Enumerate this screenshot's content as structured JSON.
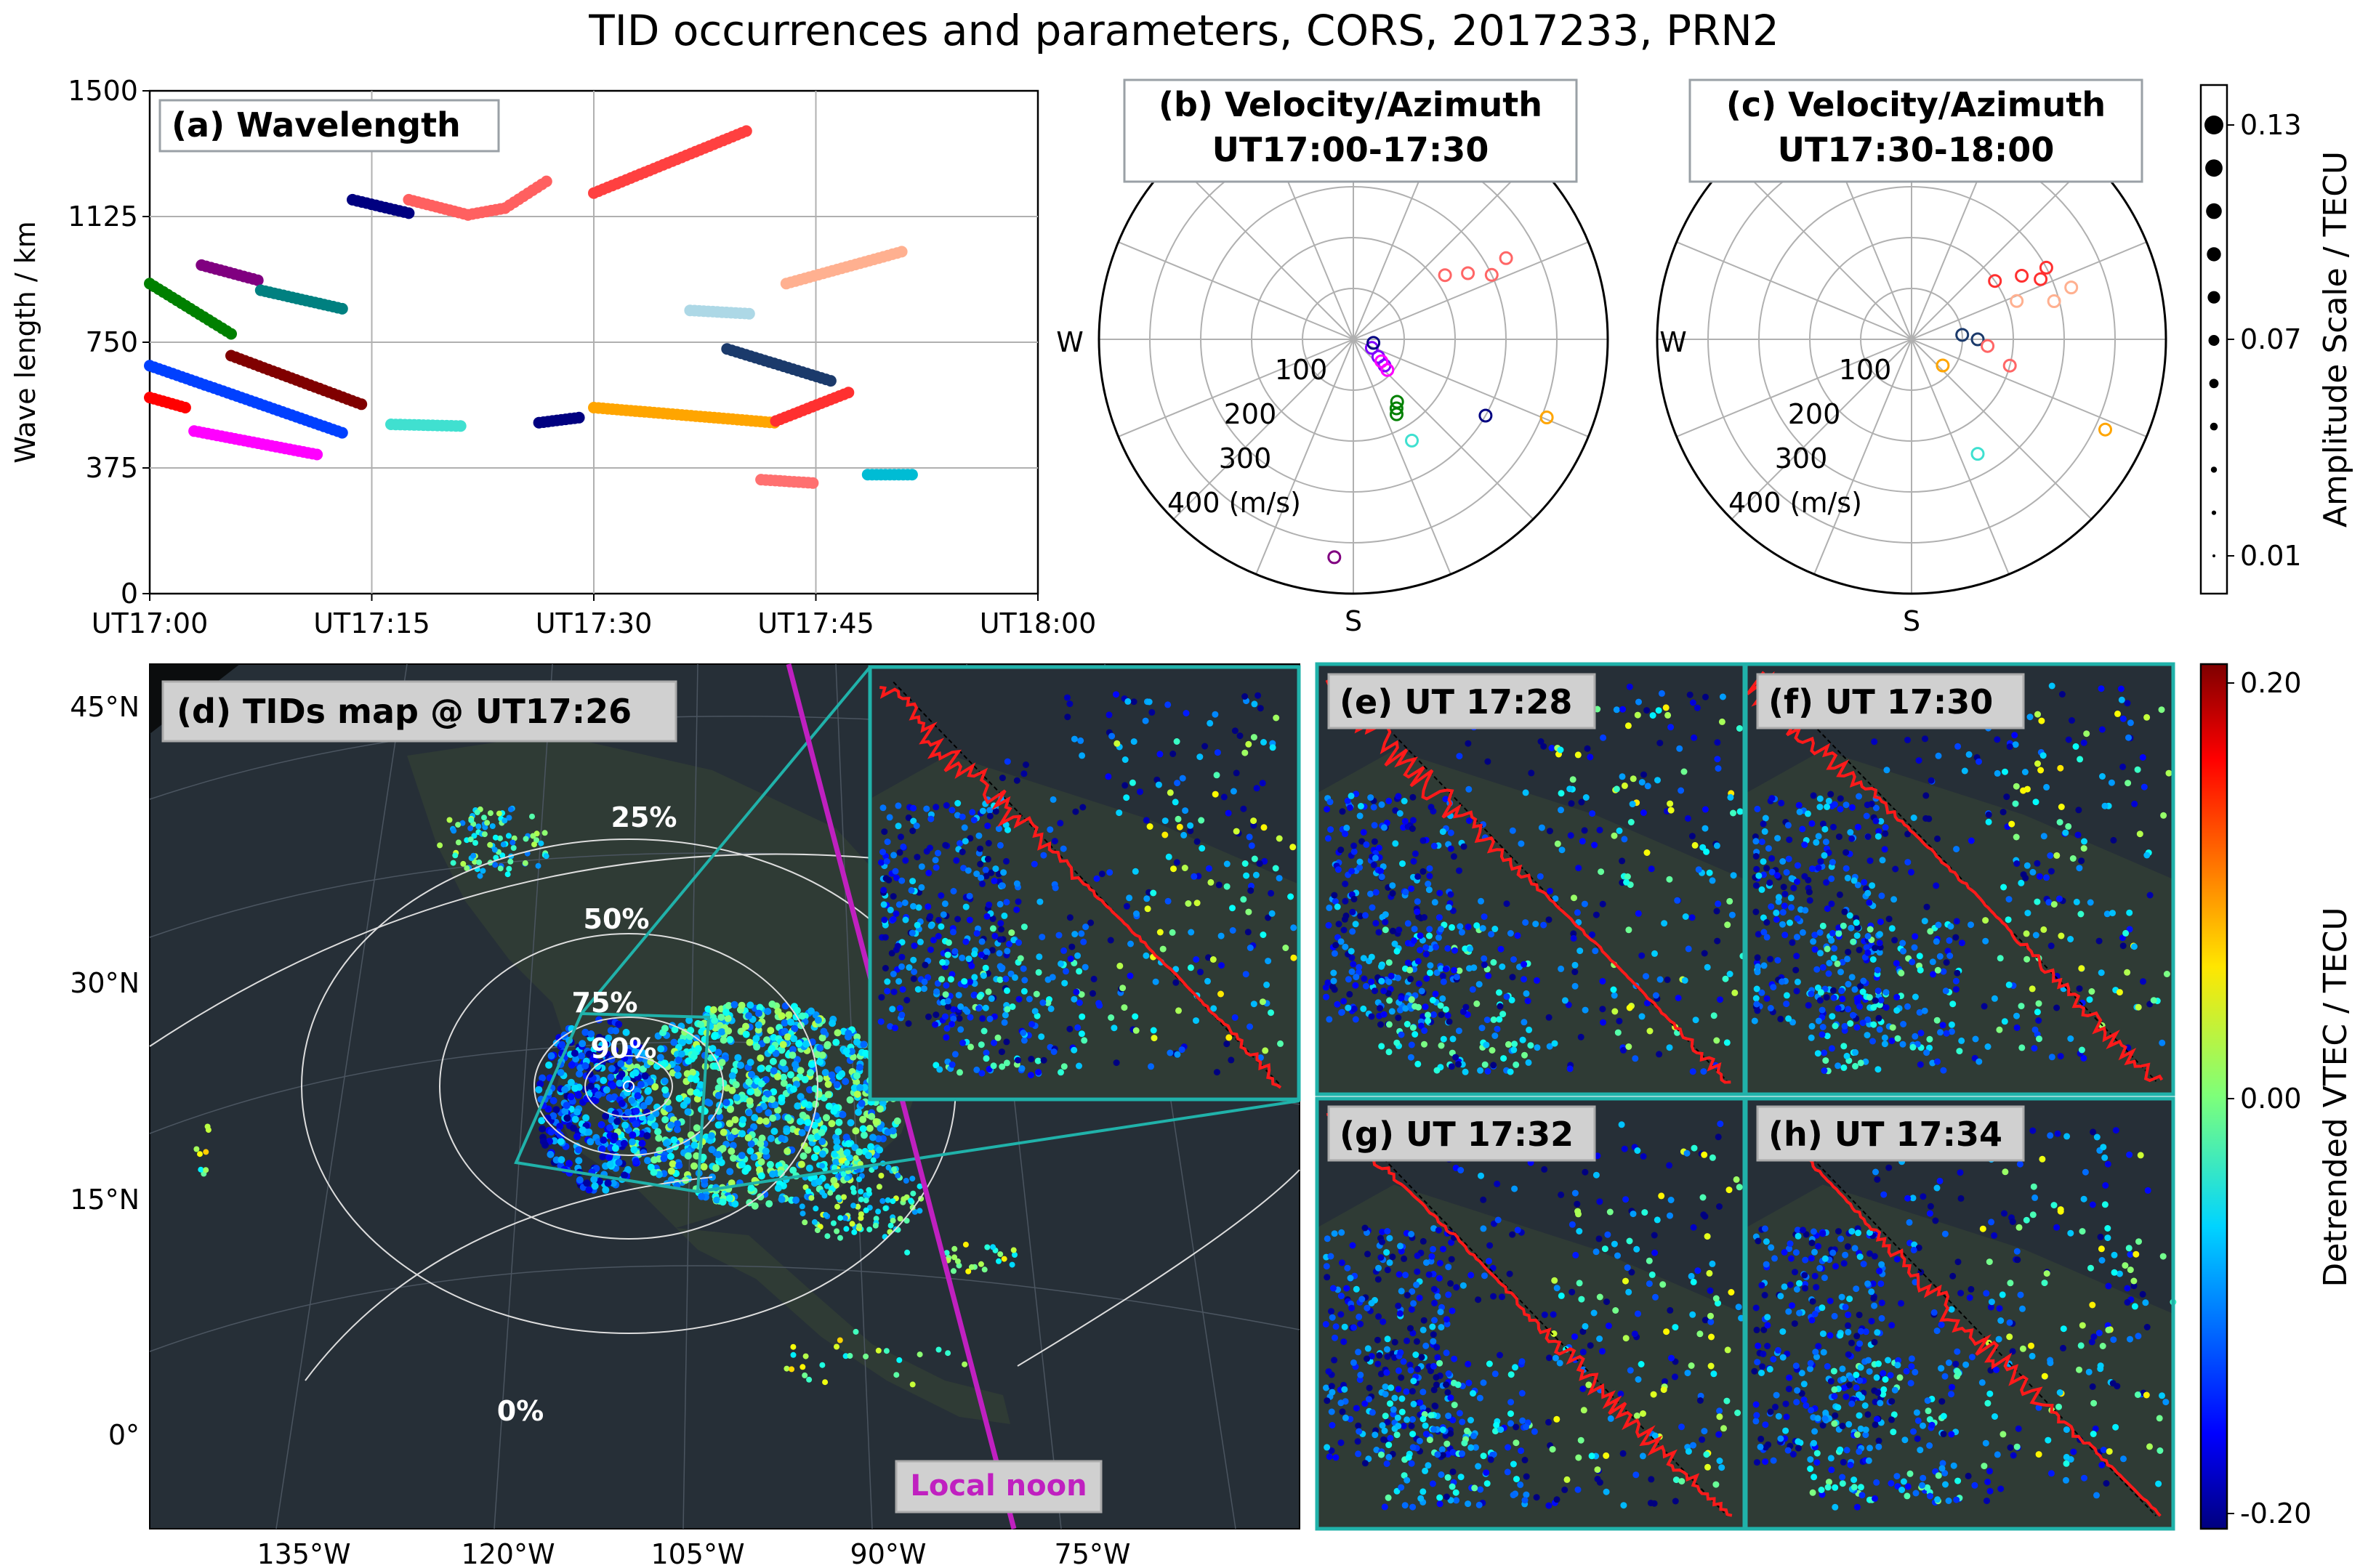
{
  "figure": {
    "title": "TID occurrences and parameters, CORS, 2017233, PRN2"
  },
  "colors": {
    "panel_bg": "#262f37",
    "land": "#2f3a35",
    "teal": "#20b2aa",
    "purple": "#c020c0",
    "red": "#ff1a1a",
    "white": "#ffffff"
  },
  "chart_data": [
    {
      "id": "a",
      "type": "scatter",
      "label": "(a) Wavelength",
      "ylabel": "Wave length / km",
      "xlim": [
        0,
        60
      ],
      "ylim": [
        0,
        1500
      ],
      "yticks": [
        0,
        375,
        750,
        1125,
        1500
      ],
      "ytick_labels": [
        "0",
        "375",
        "750",
        "1125",
        "1500"
      ],
      "xticks": [
        0,
        15,
        30,
        45,
        60
      ],
      "xtick_labels": [
        "UT17:00",
        "UT17:15",
        "UT17:30",
        "UT17:45",
        "UT18:00"
      ],
      "grid": true,
      "series": [
        {
          "color": "#ff0000",
          "x": [
            0,
            2.4
          ],
          "y": [
            585,
            555
          ]
        },
        {
          "color": "#0040ff",
          "x": [
            0,
            13
          ],
          "y": [
            680,
            480
          ]
        },
        {
          "color": "#ff00ff",
          "x": [
            3,
            11.3
          ],
          "y": [
            485,
            415
          ]
        },
        {
          "color": "#008000",
          "x": [
            0,
            5.5
          ],
          "y": [
            925,
            775
          ]
        },
        {
          "color": "#800080",
          "x": [
            3.5,
            7.3
          ],
          "y": [
            980,
            935
          ]
        },
        {
          "color": "#008080",
          "x": [
            7.5,
            13
          ],
          "y": [
            905,
            850
          ]
        },
        {
          "color": "#800000",
          "x": [
            5.5,
            14.3
          ],
          "y": [
            710,
            565
          ]
        },
        {
          "color": "#000080",
          "x": [
            13.7,
            17.5
          ],
          "y": [
            1175,
            1135
          ]
        },
        {
          "color": "#ff6060",
          "x": [
            17.5,
            21.5,
            24
          ],
          "y": [
            1175,
            1130,
            1150
          ]
        },
        {
          "color": "#ff6060",
          "x": [
            24,
            26.8
          ],
          "y": [
            1150,
            1230
          ]
        },
        {
          "color": "#40e0d0",
          "x": [
            16.3,
            21
          ],
          "y": [
            505,
            500
          ]
        },
        {
          "color": "#000080",
          "x": [
            26.3,
            29
          ],
          "y": [
            510,
            525
          ]
        },
        {
          "color": "#ff4040",
          "x": [
            30,
            40.3
          ],
          "y": [
            1195,
            1380
          ]
        },
        {
          "color": "#add8e6",
          "x": [
            36.5,
            40.5
          ],
          "y": [
            845,
            835
          ]
        },
        {
          "color": "#ffb090",
          "x": [
            43,
            50.8
          ],
          "y": [
            925,
            1020
          ]
        },
        {
          "color": "#1b3a6b",
          "x": [
            39,
            46
          ],
          "y": [
            730,
            635
          ]
        },
        {
          "color": "#ffa500",
          "x": [
            30,
            42.2
          ],
          "y": [
            555,
            510
          ]
        },
        {
          "color": "#ff3030",
          "x": [
            42.3,
            47.2
          ],
          "y": [
            515,
            600
          ]
        },
        {
          "color": "#ff7070",
          "x": [
            41.3,
            44.8
          ],
          "y": [
            340,
            330
          ]
        },
        {
          "color": "#00bcd4",
          "x": [
            48.5,
            51.5
          ],
          "y": [
            355,
            355
          ]
        }
      ]
    },
    {
      "id": "b",
      "type": "scatter",
      "projection": "polar",
      "label_line1": "(b) Velocity/Azimuth",
      "label_line2": "UT17:00-17:30",
      "rlim": [
        0,
        500
      ],
      "r_labels": [
        "100",
        "200",
        "300",
        "400 (m/s)"
      ],
      "dir_labels": {
        "w": "W",
        "s": "S"
      },
      "series": [
        {
          "color": "#ff6666",
          "az": [
            55,
            60,
            65,
            62
          ],
          "r": [
            220,
            260,
            300,
            340
          ]
        },
        {
          "color": "#8000ff",
          "az": [
            115,
            125,
            130
          ],
          "r": [
            40,
            60,
            80
          ]
        },
        {
          "color": "#ff00ff",
          "az": [
            128,
            132
          ],
          "r": [
            70,
            90
          ]
        },
        {
          "color": "#008000",
          "az": [
            145,
            150,
            148
          ],
          "r": [
            150,
            170,
            160
          ]
        },
        {
          "color": "#40e0d0",
          "az": [
            150
          ],
          "r": [
            230
          ]
        },
        {
          "color": "#000080",
          "az": [
            120,
            100
          ],
          "r": [
            300,
            40
          ]
        },
        {
          "color": "#ffa500",
          "az": [
            112
          ],
          "r": [
            410
          ]
        },
        {
          "color": "#800080",
          "az": [
            185
          ],
          "r": [
            430
          ]
        }
      ]
    },
    {
      "id": "c",
      "type": "scatter",
      "projection": "polar",
      "label_line1": "(c) Velocity/Azimuth",
      "label_line2": "UT17:30-18:00",
      "rlim": [
        0,
        500
      ],
      "r_labels": [
        "100",
        "200",
        "300",
        "400 (m/s)"
      ],
      "dir_labels": {
        "w": "W",
        "s": "S"
      },
      "series": [
        {
          "color": "#ff3030",
          "az": [
            55,
            60,
            65,
            62
          ],
          "r": [
            200,
            250,
            280,
            300
          ]
        },
        {
          "color": "#ffb090",
          "az": [
            70,
            75,
            72
          ],
          "r": [
            220,
            290,
            330
          ]
        },
        {
          "color": "#1b3a6b",
          "az": [
            85,
            90
          ],
          "r": [
            100,
            130
          ]
        },
        {
          "color": "#ff6666",
          "az": [
            95,
            105
          ],
          "r": [
            150,
            200
          ]
        },
        {
          "color": "#ffa500",
          "az": [
            130,
            115
          ],
          "r": [
            80,
            420
          ]
        },
        {
          "color": "#40e0d0",
          "az": [
            150
          ],
          "r": [
            260
          ]
        }
      ]
    },
    {
      "id": "amp_scale",
      "type": "legend",
      "label": "Amplitude Scale / TECU",
      "tick_labels": [
        "0.13",
        "0.07",
        "0.01"
      ],
      "min": 0.01,
      "max": 0.13
    },
    {
      "id": "d",
      "type": "map",
      "label": "(d) TIDs map @ UT17:26",
      "lat_labels": [
        "45°N",
        "30°N",
        "15°N",
        "0°"
      ],
      "lon_labels": [
        "135°W",
        "120°W",
        "105°W",
        "90°W",
        "75°W"
      ],
      "contour_labels": [
        "25%",
        "50%",
        "75%",
        "90%",
        "0%"
      ],
      "noon_label": "Local noon"
    },
    {
      "id": "detail_panels",
      "type": "map",
      "labels": [
        "(e) UT 17:28",
        "(f) UT 17:30",
        "(g) UT 17:32",
        "(h) UT 17:34"
      ]
    },
    {
      "id": "colorbar",
      "type": "heatmap",
      "label": "Detrended VTEC / TECU",
      "range": [
        -0.2,
        0.2
      ],
      "tick_labels": [
        "0.20",
        "0.00",
        "-0.20"
      ]
    }
  ]
}
